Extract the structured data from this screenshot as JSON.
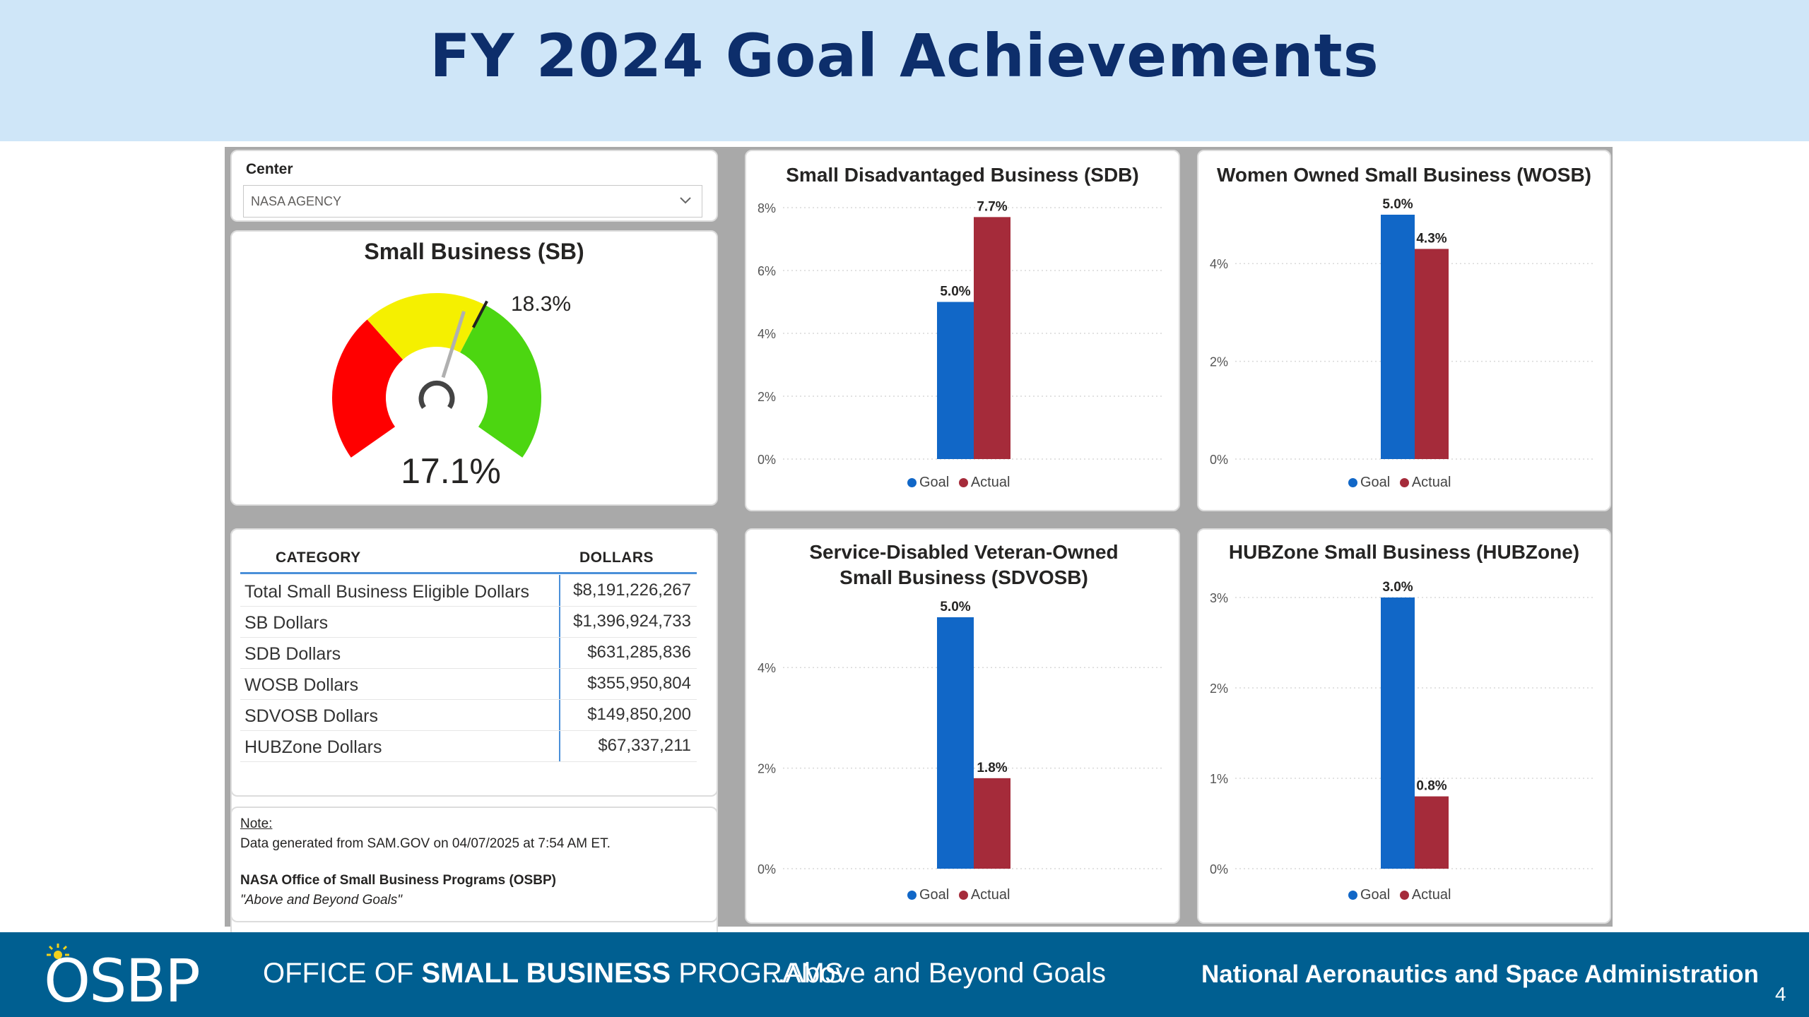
{
  "slide": {
    "title": "FY 2024 Goal Achievements",
    "page_number": "4"
  },
  "slicer": {
    "label": "Center",
    "value": "NASA AGENCY",
    "icon": "chevron-down-icon"
  },
  "gauge": {
    "title": "Small Business (SB)",
    "value": 17.1,
    "value_label": "17.1%",
    "target": 18.3,
    "target_label": "18.3%",
    "min": 0,
    "max": 30,
    "bands": [
      {
        "from": 0,
        "to": 10,
        "color": "#ff0000"
      },
      {
        "from": 10,
        "to": 18.3,
        "color": "#f5f000"
      },
      {
        "from": 18.3,
        "to": 30,
        "color": "#4cd611"
      }
    ]
  },
  "table": {
    "headers": [
      "CATEGORY",
      "DOLLARS"
    ],
    "rows": [
      {
        "category": "Total Small Business Eligible Dollars",
        "dollars": "$8,191,226,267"
      },
      {
        "category": "SB Dollars",
        "dollars": "$1,396,924,733"
      },
      {
        "category": "SDB Dollars",
        "dollars": "$631,285,836"
      },
      {
        "category": "WOSB Dollars",
        "dollars": "$355,950,804"
      },
      {
        "category": "SDVOSB Dollars",
        "dollars": "$149,850,200"
      },
      {
        "category": "HUBZone Dollars",
        "dollars": "$67,337,211"
      }
    ]
  },
  "note": {
    "label": "Note:",
    "text": "Data generated from SAM.GOV on 04/07/2025 at 7:54 AM ET.",
    "org": "NASA Office of Small Business Programs (OSBP)",
    "motto": "\"Above and Beyond Goals\""
  },
  "colors": {
    "goal": "#1167c7",
    "actual": "#a52b3a",
    "title_band": "#cfe6f8",
    "title_text": "#0d2e6b",
    "footer": "#005f91"
  },
  "chart_data": [
    {
      "type": "bar",
      "title": "Small Disadvantaged Business (SDB)",
      "categories": [
        ""
      ],
      "series": [
        {
          "name": "Goal",
          "values": [
            5.0
          ],
          "labels": [
            "5.0%"
          ]
        },
        {
          "name": "Actual",
          "values": [
            7.7
          ],
          "labels": [
            "7.7%"
          ]
        }
      ],
      "yticks": [
        "0%",
        "2%",
        "4%",
        "6%",
        "8%"
      ],
      "ylim": [
        0,
        8
      ],
      "grid": true,
      "legend": "bottom"
    },
    {
      "type": "bar",
      "title": "Women Owned Small Business (WOSB)",
      "categories": [
        ""
      ],
      "series": [
        {
          "name": "Goal",
          "values": [
            5.0
          ],
          "labels": [
            "5.0%"
          ]
        },
        {
          "name": "Actual",
          "values": [
            4.3
          ],
          "labels": [
            "4.3%"
          ]
        }
      ],
      "yticks": [
        "0%",
        "2%",
        "4%"
      ],
      "ylim": [
        0,
        5
      ],
      "grid": true,
      "legend": "bottom"
    },
    {
      "type": "bar",
      "title": "Service-Disabled Veteran-Owned Small Business (SDVOSB)",
      "categories": [
        ""
      ],
      "series": [
        {
          "name": "Goal",
          "values": [
            5.0
          ],
          "labels": [
            "5.0%"
          ]
        },
        {
          "name": "Actual",
          "values": [
            1.8
          ],
          "labels": [
            "1.8%"
          ]
        }
      ],
      "yticks": [
        "0%",
        "2%",
        "4%"
      ],
      "ylim": [
        0,
        5
      ],
      "grid": true,
      "legend": "bottom"
    },
    {
      "type": "bar",
      "title": "HUBZone Small Business (HUBZone)",
      "categories": [
        ""
      ],
      "series": [
        {
          "name": "Goal",
          "values": [
            3.0
          ],
          "labels": [
            "3.0%"
          ]
        },
        {
          "name": "Actual",
          "values": [
            0.8
          ],
          "labels": [
            "0.8%"
          ]
        }
      ],
      "yticks": [
        "0%",
        "1%",
        "2%",
        "3%"
      ],
      "ylim": [
        0,
        3
      ],
      "grid": true,
      "legend": "bottom"
    }
  ],
  "footer": {
    "logo": "OSBP",
    "office_prefix": "OFFICE OF ",
    "office_bold": "SMALL BUSINESS",
    "office_suffix": " PROGRAMS",
    "tagline": "...Above and Beyond Goals",
    "agency": "National Aeronautics and Space Administration"
  }
}
